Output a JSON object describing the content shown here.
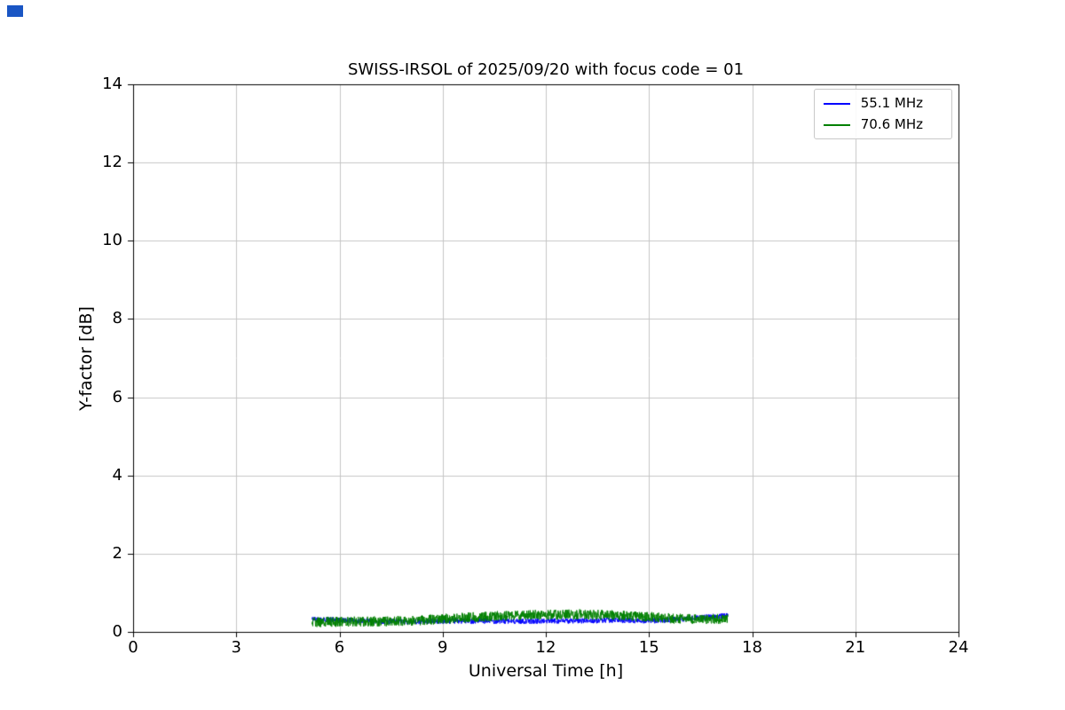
{
  "chart_data": {
    "type": "line",
    "title": "SWISS-IRSOL of 2025/09/20 with focus code = 01",
    "xlabel": "Universal Time [h]",
    "ylabel": "Y-factor [dB]",
    "xlim": [
      0,
      24
    ],
    "ylim": [
      0,
      14
    ],
    "x_ticks": [
      0,
      3,
      6,
      9,
      12,
      15,
      18,
      21,
      24
    ],
    "y_ticks": [
      0,
      2,
      4,
      6,
      8,
      10,
      12,
      14
    ],
    "grid": true,
    "grid_color": "#c6c6c6",
    "axis_color": "#000000",
    "legend_position": "upper right",
    "series": [
      {
        "name": "55.1 MHz",
        "color": "#0000ff",
        "x_range": [
          5.2,
          17.3
        ],
        "control_x": [
          5.2,
          6,
          7,
          8,
          9,
          10,
          11,
          12,
          13,
          14,
          15,
          16,
          17,
          17.3
        ],
        "control_y": [
          0.33,
          0.3,
          0.27,
          0.26,
          0.28,
          0.28,
          0.27,
          0.28,
          0.28,
          0.3,
          0.28,
          0.33,
          0.4,
          0.42
        ],
        "noise_amplitude": 0.07
      },
      {
        "name": "70.6 MHz",
        "color": "#008000",
        "x_range": [
          5.2,
          17.3
        ],
        "control_x": [
          5.2,
          6,
          7,
          8,
          9,
          10,
          11,
          12,
          13,
          14,
          15,
          16,
          17,
          17.3
        ],
        "control_y": [
          0.25,
          0.26,
          0.27,
          0.28,
          0.33,
          0.38,
          0.42,
          0.44,
          0.45,
          0.42,
          0.38,
          0.33,
          0.33,
          0.33
        ],
        "noise_amplitude": 0.13
      }
    ]
  },
  "artifacts": {
    "top_left_marker_color": "#1a56c4"
  }
}
